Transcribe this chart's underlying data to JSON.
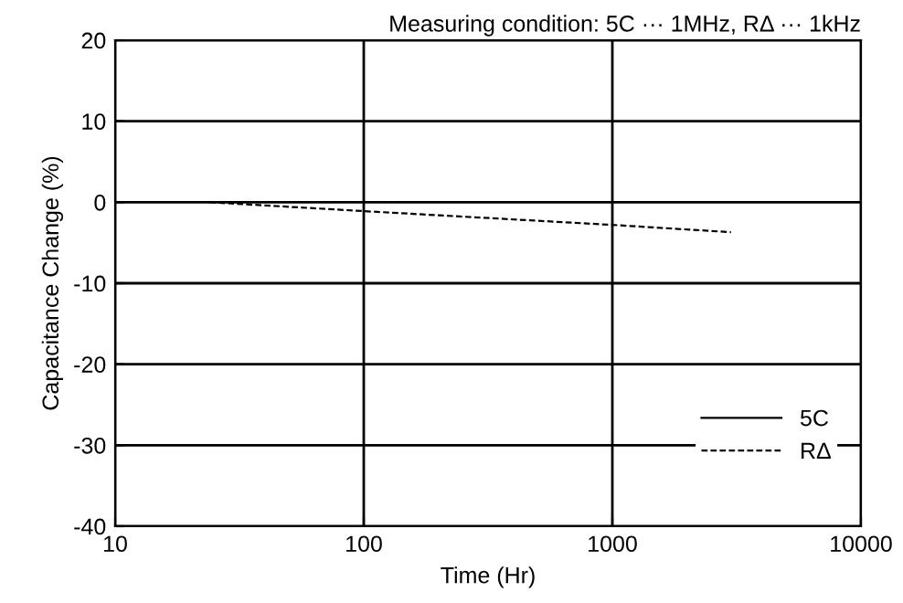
{
  "chart_data": {
    "type": "line",
    "xlabel": "Time (Hr)",
    "ylabel": "Capacitance Change (%)",
    "annotations": [
      "Measuring condition: 5C ··· 1MHz, RΔ ··· 1kHz"
    ],
    "log": "x",
    "xlim": [
      10,
      10000
    ],
    "xticks": [
      10,
      100,
      1000,
      10000
    ],
    "ylim": [
      -40,
      20
    ],
    "yticks": [
      -40,
      -30,
      -20,
      -10,
      0,
      10,
      20
    ],
    "grid": true,
    "legend": "bottom right",
    "marker": "none",
    "series": [
      {
        "name": "5C",
        "color": "#000000",
        "line_style": "solid"
      },
      {
        "name": "RΔ",
        "color": "#000000",
        "line_style": "dashed",
        "x": [
          24,
          100,
          1000,
          3000
        ],
        "values": [
          0,
          -1.1,
          -2.8,
          -3.7
        ]
      }
    ]
  }
}
